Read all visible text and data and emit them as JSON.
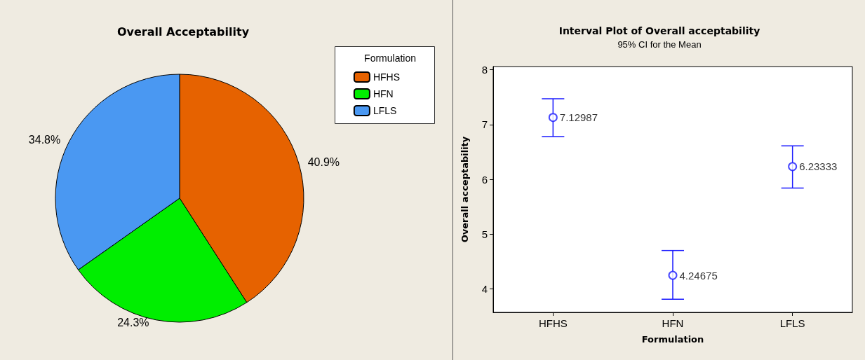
{
  "chart_data": [
    {
      "type": "pie",
      "title": "Overall Acceptability",
      "legend_title": "Formulation",
      "legend": "top right",
      "categories": [
        "HFHS",
        "HFN",
        "LFLS"
      ],
      "values": [
        40.9,
        24.3,
        34.8
      ],
      "colors": [
        "#e66200",
        "#00ee00",
        "#4a98f2"
      ],
      "value_labels": [
        "40.9%",
        "24.3%",
        "34.8%"
      ]
    },
    {
      "type": "scatter",
      "title": "Interval Plot of Overall acceptability",
      "subtitle": "95% CI for the Mean",
      "xlabel": "Formulation",
      "ylabel": "Overall acceptability",
      "categories": [
        "HFHS",
        "HFN",
        "LFLS"
      ],
      "values": [
        7.12987,
        4.24675,
        6.23333
      ],
      "errors": [
        [
          6.78,
          7.47
        ],
        [
          3.81,
          4.7
        ],
        [
          5.84,
          6.61
        ]
      ],
      "color": "#1a1aff",
      "marker": "circle",
      "data_labels": true,
      "ylim": [
        3.57,
        8.06
      ],
      "yticks": [
        4,
        5,
        6,
        7,
        8
      ]
    }
  ]
}
